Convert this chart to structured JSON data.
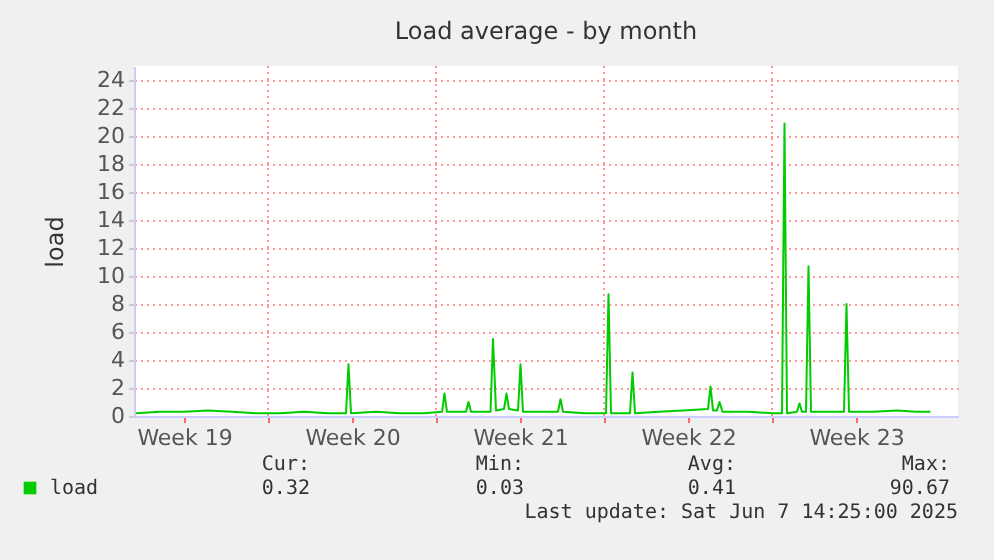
{
  "chart_data": {
    "type": "line",
    "title": "Load average - by month",
    "ylabel": "load",
    "x": [
      "2025-05-05T12:00",
      "2025-05-06T12:00",
      "2025-05-07T12:00",
      "2025-05-08T12:00",
      "2025-05-09T12:00",
      "2025-05-10T12:00",
      "2025-05-11T12:00",
      "2025-05-12T12:00",
      "2025-05-13T12:00",
      "2025-05-14T06:00",
      "2025-05-14T08:30",
      "2025-05-14T11:00",
      "2025-05-15T12:00",
      "2025-05-16T12:00",
      "2025-05-17T12:00",
      "2025-05-18T06:00",
      "2025-05-18T08:30",
      "2025-05-18T11:00",
      "2025-05-19T06:00",
      "2025-05-19T08:30",
      "2025-05-19T11:00",
      "2025-05-20T06:30",
      "2025-05-20T09:00",
      "2025-05-20T12:00",
      "2025-05-20T20:00",
      "2025-05-20T22:30",
      "2025-05-21T01:00",
      "2025-05-21T10:00",
      "2025-05-21T12:30",
      "2025-05-21T15:00",
      "2025-05-22T07:00",
      "2025-05-23T02:00",
      "2025-05-23T04:30",
      "2025-05-23T07:00",
      "2025-05-24T05:00",
      "2025-05-25T02:00",
      "2025-05-25T04:30",
      "2025-05-25T07:00",
      "2025-05-26T02:00",
      "2025-05-26T04:30",
      "2025-05-26T07:00",
      "2025-05-27T07:00",
      "2025-05-28T07:00",
      "2025-05-29T08:00",
      "2025-05-29T10:30",
      "2025-05-29T13:00",
      "2025-05-29T17:00",
      "2025-05-29T19:30",
      "2025-05-29T22:30",
      "2025-05-31T00:00",
      "2025-06-01T00:00",
      "2025-06-01T10:00",
      "2025-06-01T12:30",
      "2025-06-01T15:00",
      "2025-06-02T01:00",
      "2025-06-02T03:30",
      "2025-06-02T06:00",
      "2025-06-02T10:00",
      "2025-06-02T12:30",
      "2025-06-02T15:00",
      "2025-06-03T05:00",
      "2025-06-04T00:00",
      "2025-06-04T02:30",
      "2025-06-04T05:00",
      "2025-06-05T05:00",
      "2025-06-06T05:00",
      "2025-06-07T00:00",
      "2025-06-07T14:25"
    ],
    "series": [
      {
        "name": "load",
        "color": "#00cc00",
        "values": [
          0.2,
          0.3,
          0.3,
          0.4,
          0.3,
          0.2,
          0.2,
          0.3,
          0.2,
          0.2,
          3.7,
          0.2,
          0.3,
          0.2,
          0.2,
          0.3,
          1.6,
          0.3,
          0.3,
          1.0,
          0.3,
          0.3,
          5.5,
          0.4,
          0.5,
          1.6,
          0.5,
          0.4,
          3.7,
          0.3,
          0.3,
          0.3,
          1.2,
          0.3,
          0.2,
          0.2,
          8.7,
          0.2,
          0.2,
          3.1,
          0.2,
          0.3,
          0.4,
          0.5,
          2.1,
          0.4,
          0.4,
          1.0,
          0.3,
          0.3,
          0.2,
          0.2,
          20.9,
          0.2,
          0.3,
          0.9,
          0.3,
          0.3,
          10.7,
          0.3,
          0.3,
          0.3,
          8.0,
          0.3,
          0.3,
          0.4,
          0.3,
          0.3
        ]
      }
    ],
    "xlim": [
      "2025-05-05T10:00",
      "2025-06-08T18:00"
    ],
    "xticks": [
      {
        "value": "2025-05-07T12:00",
        "label": "Week 19"
      },
      {
        "value": "2025-05-11",
        "label": null
      },
      {
        "value": "2025-05-14T12:00",
        "label": "Week 20"
      },
      {
        "value": "2025-05-18",
        "label": null
      },
      {
        "value": "2025-05-21T12:00",
        "label": "Week 21"
      },
      {
        "value": "2025-05-25",
        "label": null
      },
      {
        "value": "2025-05-28T12:00",
        "label": "Week 22"
      },
      {
        "value": "2025-06-01",
        "label": null
      },
      {
        "value": "2025-06-04T12:00",
        "label": "Week 23"
      }
    ],
    "ylim": [
      0,
      25
    ],
    "yticks": [
      0,
      2,
      4,
      6,
      8,
      10,
      12,
      14,
      16,
      18,
      20,
      22,
      24
    ],
    "grid": true,
    "legend": "bottom left",
    "annotations": [
      "Cur:",
      "Min:",
      "Avg:",
      "Max:",
      "0.32",
      "0.03",
      "0.41",
      "90.67",
      "Last update: Sat Jun  7 14:25:00 2025"
    ]
  }
}
